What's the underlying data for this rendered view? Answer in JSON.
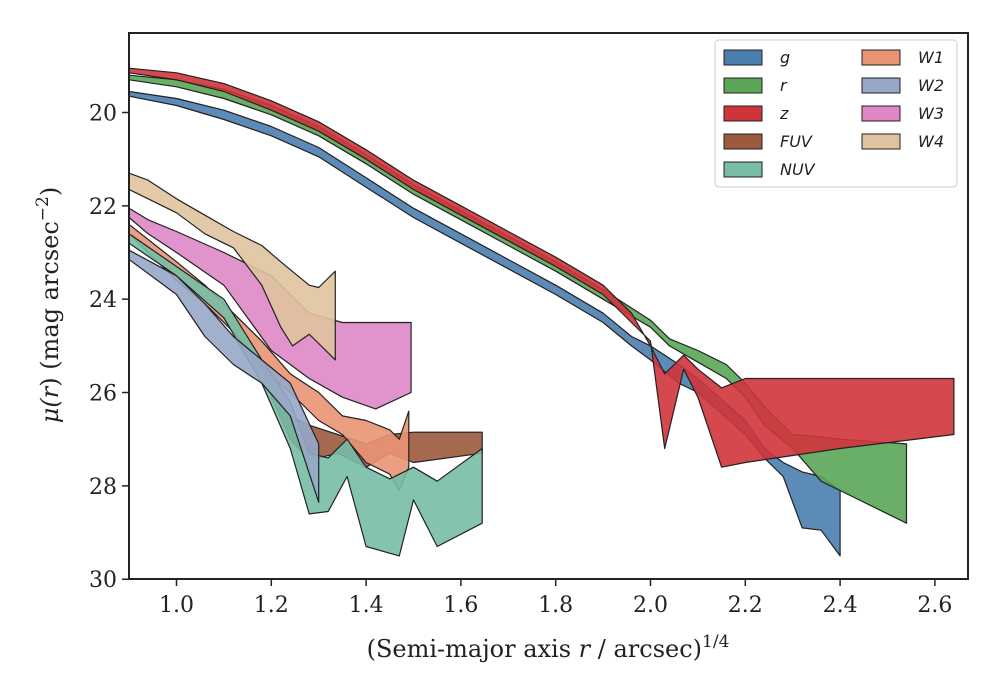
{
  "chart_data": {
    "type": "area",
    "xlabel_main": "(Semi-major axis ",
    "xlabel_var": "r",
    "xlabel_rest": " / arcsec)",
    "xlabel_sup": "1/4",
    "ylabel_main": "μ(",
    "ylabel_var": "r",
    "ylabel_rest": ") (mag arcsec",
    "ylabel_sup": "−2",
    "ylabel_close": ")",
    "xlim": [
      0.9,
      2.66
    ],
    "ylim": [
      30,
      18.4
    ],
    "y_inverted": true,
    "x_ticks": [
      "1.0",
      "1.2",
      "1.4",
      "1.6",
      "1.8",
      "2.0",
      "2.2",
      "2.4",
      "2.6"
    ],
    "y_ticks": [
      "20",
      "22",
      "24",
      "26",
      "28",
      "30"
    ],
    "legend_position": "top-right",
    "legend_columns": 2,
    "series": [
      {
        "name": "FUV",
        "color": "#9b5a3c",
        "upper": [
          [
            1.2,
            26.0
          ],
          [
            1.24,
            26.5
          ],
          [
            1.28,
            26.7
          ],
          [
            1.34,
            26.9
          ],
          [
            1.4,
            27.1
          ],
          [
            1.45,
            26.9
          ],
          [
            1.5,
            26.85
          ],
          [
            1.645,
            26.85
          ]
        ],
        "lower": [
          [
            1.2,
            26.1
          ],
          [
            1.24,
            27.0
          ],
          [
            1.28,
            27.45
          ],
          [
            1.34,
            27.3
          ],
          [
            1.4,
            27.6
          ],
          [
            1.45,
            27.3
          ],
          [
            1.5,
            27.5
          ],
          [
            1.645,
            27.3
          ]
        ]
      },
      {
        "name": "W3",
        "color": "#de87c6",
        "upper": [
          [
            0.9,
            22.05
          ],
          [
            0.94,
            22.3
          ],
          [
            1.0,
            22.55
          ],
          [
            1.1,
            23.0
          ],
          [
            1.2,
            23.5
          ],
          [
            1.28,
            24.3
          ],
          [
            1.35,
            24.5
          ],
          [
            1.42,
            24.5
          ],
          [
            1.495,
            24.5
          ]
        ],
        "lower": [
          [
            0.9,
            22.25
          ],
          [
            0.94,
            22.6
          ],
          [
            1.0,
            23.0
          ],
          [
            1.1,
            23.7
          ],
          [
            1.2,
            25.1
          ],
          [
            1.28,
            25.7
          ],
          [
            1.35,
            26.1
          ],
          [
            1.42,
            26.35
          ],
          [
            1.495,
            26.0
          ]
        ]
      },
      {
        "name": "W4",
        "color": "#dfc39e",
        "upper": [
          [
            0.9,
            21.3
          ],
          [
            0.94,
            21.45
          ],
          [
            1.0,
            21.85
          ],
          [
            1.06,
            22.2
          ],
          [
            1.12,
            22.55
          ],
          [
            1.18,
            22.85
          ],
          [
            1.22,
            23.2
          ],
          [
            1.28,
            23.7
          ],
          [
            1.3,
            23.75
          ],
          [
            1.335,
            23.4
          ]
        ],
        "lower": [
          [
            0.9,
            21.65
          ],
          [
            0.94,
            21.85
          ],
          [
            1.0,
            22.15
          ],
          [
            1.06,
            22.6
          ],
          [
            1.12,
            22.9
          ],
          [
            1.18,
            23.7
          ],
          [
            1.22,
            24.6
          ],
          [
            1.245,
            25.0
          ],
          [
            1.28,
            24.75
          ],
          [
            1.3,
            24.95
          ],
          [
            1.335,
            25.3
          ]
        ]
      },
      {
        "name": "W1",
        "color": "#ea9374",
        "upper": [
          [
            0.9,
            22.4
          ],
          [
            1.0,
            23.2
          ],
          [
            1.06,
            23.7
          ],
          [
            1.12,
            24.3
          ],
          [
            1.18,
            24.9
          ],
          [
            1.24,
            25.6
          ],
          [
            1.3,
            26.0
          ],
          [
            1.35,
            26.5
          ],
          [
            1.4,
            26.6
          ],
          [
            1.45,
            26.8
          ],
          [
            1.47,
            27.0
          ],
          [
            1.49,
            26.4
          ]
        ],
        "lower": [
          [
            0.9,
            22.6
          ],
          [
            1.0,
            23.6
          ],
          [
            1.06,
            24.1
          ],
          [
            1.12,
            24.7
          ],
          [
            1.18,
            25.5
          ],
          [
            1.24,
            26.0
          ],
          [
            1.3,
            26.6
          ],
          [
            1.35,
            26.9
          ],
          [
            1.4,
            27.5
          ],
          [
            1.45,
            27.75
          ],
          [
            1.47,
            28.1
          ],
          [
            1.49,
            27.6
          ]
        ]
      },
      {
        "name": "NUV",
        "color": "#77bca5",
        "upper": [
          [
            0.9,
            22.6
          ],
          [
            1.0,
            23.3
          ],
          [
            1.1,
            24.0
          ],
          [
            1.18,
            25.3
          ],
          [
            1.24,
            26.2
          ],
          [
            1.28,
            27.3
          ],
          [
            1.32,
            27.4
          ],
          [
            1.36,
            27.0
          ],
          [
            1.4,
            27.6
          ],
          [
            1.45,
            27.85
          ],
          [
            1.5,
            27.6
          ],
          [
            1.55,
            27.9
          ],
          [
            1.645,
            27.2
          ]
        ],
        "lower": [
          [
            0.9,
            22.8
          ],
          [
            1.0,
            23.5
          ],
          [
            1.1,
            24.4
          ],
          [
            1.18,
            25.8
          ],
          [
            1.24,
            27.2
          ],
          [
            1.28,
            28.6
          ],
          [
            1.32,
            28.55
          ],
          [
            1.36,
            27.8
          ],
          [
            1.4,
            29.3
          ],
          [
            1.47,
            29.5
          ],
          [
            1.5,
            28.3
          ],
          [
            1.55,
            29.3
          ],
          [
            1.645,
            28.8
          ]
        ]
      },
      {
        "name": "W2",
        "color": "#97a7c8",
        "upper": [
          [
            0.9,
            22.95
          ],
          [
            1.0,
            23.5
          ],
          [
            1.06,
            24.1
          ],
          [
            1.12,
            24.8
          ],
          [
            1.18,
            25.3
          ],
          [
            1.24,
            25.8
          ],
          [
            1.3,
            27.1
          ]
        ],
        "lower": [
          [
            0.9,
            23.15
          ],
          [
            1.0,
            23.9
          ],
          [
            1.06,
            24.8
          ],
          [
            1.12,
            25.4
          ],
          [
            1.18,
            25.8
          ],
          [
            1.24,
            26.5
          ],
          [
            1.3,
            28.35
          ]
        ]
      },
      {
        "name": "g",
        "color": "#4b7eaf",
        "upper": [
          [
            0.9,
            19.55
          ],
          [
            1.0,
            19.7
          ],
          [
            1.1,
            19.95
          ],
          [
            1.2,
            20.3
          ],
          [
            1.3,
            20.75
          ],
          [
            1.4,
            21.4
          ],
          [
            1.5,
            22.05
          ],
          [
            1.6,
            22.6
          ],
          [
            1.7,
            23.15
          ],
          [
            1.8,
            23.7
          ],
          [
            1.9,
            24.3
          ],
          [
            1.96,
            24.8
          ],
          [
            2.0,
            25.0
          ],
          [
            2.06,
            25.4
          ],
          [
            2.1,
            25.7
          ],
          [
            2.2,
            26.6
          ],
          [
            2.24,
            27.2
          ],
          [
            2.28,
            27.5
          ],
          [
            2.32,
            27.7
          ],
          [
            2.36,
            27.8
          ],
          [
            2.4,
            28.1
          ]
        ],
        "lower": [
          [
            0.9,
            19.65
          ],
          [
            1.0,
            19.85
          ],
          [
            1.1,
            20.15
          ],
          [
            1.2,
            20.5
          ],
          [
            1.3,
            20.95
          ],
          [
            1.4,
            21.6
          ],
          [
            1.5,
            22.25
          ],
          [
            1.6,
            22.8
          ],
          [
            1.7,
            23.35
          ],
          [
            1.8,
            23.9
          ],
          [
            1.9,
            24.5
          ],
          [
            1.96,
            25.0
          ],
          [
            2.0,
            25.3
          ],
          [
            2.06,
            25.8
          ],
          [
            2.1,
            26.0
          ],
          [
            2.2,
            26.9
          ],
          [
            2.24,
            27.4
          ],
          [
            2.28,
            27.8
          ],
          [
            2.32,
            28.9
          ],
          [
            2.36,
            28.95
          ],
          [
            2.4,
            29.5
          ]
        ]
      },
      {
        "name": "r",
        "color": "#5aa656",
        "upper": [
          [
            0.9,
            19.2
          ],
          [
            1.0,
            19.3
          ],
          [
            1.1,
            19.5
          ],
          [
            1.2,
            19.85
          ],
          [
            1.3,
            20.3
          ],
          [
            1.4,
            20.9
          ],
          [
            1.5,
            21.55
          ],
          [
            1.6,
            22.1
          ],
          [
            1.7,
            22.65
          ],
          [
            1.8,
            23.2
          ],
          [
            1.9,
            23.8
          ],
          [
            2.0,
            24.45
          ],
          [
            2.04,
            24.85
          ],
          [
            2.1,
            25.1
          ],
          [
            2.16,
            25.4
          ],
          [
            2.2,
            25.8
          ],
          [
            2.24,
            26.3
          ],
          [
            2.3,
            26.9
          ],
          [
            2.36,
            26.95
          ],
          [
            2.4,
            27.0
          ],
          [
            2.54,
            27.1
          ]
        ],
        "lower": [
          [
            0.9,
            19.3
          ],
          [
            1.0,
            19.45
          ],
          [
            1.1,
            19.7
          ],
          [
            1.2,
            20.05
          ],
          [
            1.3,
            20.5
          ],
          [
            1.4,
            21.1
          ],
          [
            1.5,
            21.75
          ],
          [
            1.6,
            22.3
          ],
          [
            1.7,
            22.85
          ],
          [
            1.8,
            23.4
          ],
          [
            1.9,
            24.0
          ],
          [
            2.0,
            24.6
          ],
          [
            2.04,
            25.0
          ],
          [
            2.1,
            25.35
          ],
          [
            2.16,
            25.7
          ],
          [
            2.2,
            26.1
          ],
          [
            2.24,
            26.7
          ],
          [
            2.3,
            27.2
          ],
          [
            2.36,
            27.9
          ],
          [
            2.4,
            28.1
          ],
          [
            2.54,
            28.8
          ]
        ]
      },
      {
        "name": "z",
        "color": "#d0343b",
        "upper": [
          [
            0.9,
            19.05
          ],
          [
            1.0,
            19.15
          ],
          [
            1.1,
            19.38
          ],
          [
            1.2,
            19.75
          ],
          [
            1.3,
            20.2
          ],
          [
            1.4,
            20.8
          ],
          [
            1.5,
            21.45
          ],
          [
            1.6,
            22.0
          ],
          [
            1.7,
            22.55
          ],
          [
            1.8,
            23.1
          ],
          [
            1.9,
            23.7
          ],
          [
            1.96,
            24.3
          ],
          [
            2.0,
            25.0
          ],
          [
            2.03,
            25.6
          ],
          [
            2.07,
            25.2
          ],
          [
            2.1,
            25.5
          ],
          [
            2.15,
            25.9
          ],
          [
            2.2,
            25.7
          ],
          [
            2.4,
            25.7
          ],
          [
            2.64,
            25.7
          ]
        ],
        "lower": [
          [
            0.9,
            19.15
          ],
          [
            1.0,
            19.3
          ],
          [
            1.1,
            19.55
          ],
          [
            1.2,
            19.95
          ],
          [
            1.3,
            20.4
          ],
          [
            1.4,
            21.0
          ],
          [
            1.5,
            21.65
          ],
          [
            1.6,
            22.2
          ],
          [
            1.7,
            22.75
          ],
          [
            1.8,
            23.3
          ],
          [
            1.9,
            23.9
          ],
          [
            1.96,
            24.5
          ],
          [
            2.0,
            24.9
          ],
          [
            2.03,
            27.2
          ],
          [
            2.07,
            25.5
          ],
          [
            2.1,
            26.1
          ],
          [
            2.15,
            27.6
          ],
          [
            2.2,
            27.5
          ],
          [
            2.4,
            27.2
          ],
          [
            2.64,
            26.9
          ]
        ]
      }
    ],
    "legend": [
      {
        "name": "g",
        "color": "#4b7eaf",
        "col": 0,
        "row": 0
      },
      {
        "name": "r",
        "color": "#5aa656",
        "col": 0,
        "row": 1
      },
      {
        "name": "z",
        "color": "#d0343b",
        "col": 0,
        "row": 2
      },
      {
        "name": "FUV",
        "color": "#9b5a3c",
        "col": 0,
        "row": 3
      },
      {
        "name": "NUV",
        "color": "#77bca5",
        "col": 0,
        "row": 4
      },
      {
        "name": "W1",
        "color": "#ea9374",
        "col": 1,
        "row": 0
      },
      {
        "name": "W2",
        "color": "#97a7c8",
        "col": 1,
        "row": 1
      },
      {
        "name": "W3",
        "color": "#de87c6",
        "col": 1,
        "row": 2
      },
      {
        "name": "W4",
        "color": "#dfc39e",
        "col": 1,
        "row": 3
      }
    ]
  }
}
